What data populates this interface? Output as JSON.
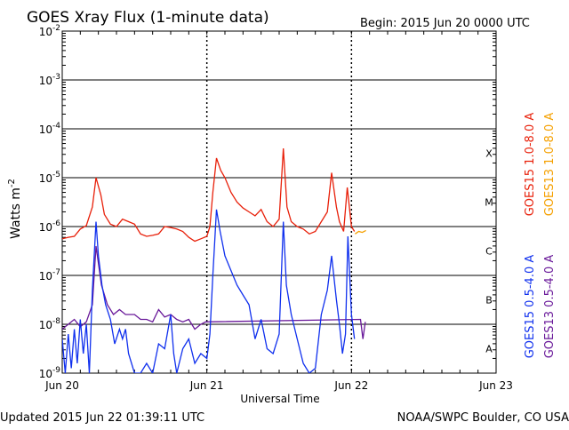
{
  "header": {
    "title": "GOES Xray Flux (1-minute data)",
    "begin": "Begin:  2015 Jun 20 0000 UTC"
  },
  "footer": {
    "updated": "Updated 2015 Jun 22 01:39:11 UTC",
    "credit": "NOAA/SWPC Boulder, CO USA"
  },
  "chart_data": {
    "type": "line",
    "title": "GOES Xray Flux (1-minute data)",
    "xlabel": "Universal Time",
    "ylabel": "Watts m",
    "ylabel_exponent": "-2",
    "y_scale": "log",
    "ylim": [
      1e-09,
      0.01
    ],
    "xlim": [
      "2015-06-20 00:00",
      "2015-06-23 00:00"
    ],
    "x_unit": "hours from 2015 Jun 20 0000 UTC",
    "x_ticks": [
      {
        "x": 0,
        "label": "Jun 20"
      },
      {
        "x": 24,
        "label": "Jun 21"
      },
      {
        "x": 48,
        "label": "Jun 22"
      },
      {
        "x": 72,
        "label": "Jun 23"
      }
    ],
    "y_ticks": [
      {
        "exp": -2,
        "base": "10",
        "sup": "-2"
      },
      {
        "exp": -3,
        "base": "10",
        "sup": "-3"
      },
      {
        "exp": -4,
        "base": "10",
        "sup": "-4"
      },
      {
        "exp": -5,
        "base": "10",
        "sup": "-5"
      },
      {
        "exp": -6,
        "base": "10",
        "sup": "-6"
      },
      {
        "exp": -7,
        "base": "10",
        "sup": "-7"
      },
      {
        "exp": -8,
        "base": "10",
        "sup": "-8"
      },
      {
        "exp": -9,
        "base": "10",
        "sup": "-9"
      }
    ],
    "flare_classes": [
      {
        "label": "X",
        "exp": -4
      },
      {
        "label": "M",
        "exp": -5
      },
      {
        "label": "C",
        "exp": -6
      },
      {
        "label": "B",
        "exp": -7
      },
      {
        "label": "A",
        "exp": -8
      }
    ],
    "grid": true,
    "legend_placement": "right, vertical",
    "series": [
      {
        "name": "GOES15 1.0-8.0 A",
        "color": "#e8200a",
        "points": [
          [
            0,
            -6.25
          ],
          [
            1,
            -6.22
          ],
          [
            2,
            -6.2
          ],
          [
            3,
            -6.05
          ],
          [
            4,
            -5.98
          ],
          [
            5,
            -5.6
          ],
          [
            5.6,
            -5.0
          ],
          [
            6.4,
            -5.35
          ],
          [
            7,
            -5.75
          ],
          [
            8,
            -5.95
          ],
          [
            9,
            -6.0
          ],
          [
            10,
            -5.85
          ],
          [
            11,
            -5.9
          ],
          [
            12,
            -5.95
          ],
          [
            13,
            -6.15
          ],
          [
            14,
            -6.2
          ],
          [
            15,
            -6.18
          ],
          [
            16,
            -6.15
          ],
          [
            17,
            -6.0
          ],
          [
            18,
            -6.02
          ],
          [
            19,
            -6.05
          ],
          [
            20,
            -6.1
          ],
          [
            21,
            -6.22
          ],
          [
            22,
            -6.3
          ],
          [
            23,
            -6.25
          ],
          [
            24,
            -6.2
          ],
          [
            24.5,
            -6.0
          ],
          [
            25,
            -5.3
          ],
          [
            25.6,
            -4.6
          ],
          [
            26.3,
            -4.85
          ],
          [
            27,
            -5.0
          ],
          [
            28,
            -5.3
          ],
          [
            29,
            -5.5
          ],
          [
            30,
            -5.62
          ],
          [
            31,
            -5.7
          ],
          [
            32,
            -5.78
          ],
          [
            33,
            -5.65
          ],
          [
            34,
            -5.9
          ],
          [
            35,
            -6.0
          ],
          [
            36,
            -5.85
          ],
          [
            36.7,
            -4.4
          ],
          [
            37.3,
            -5.6
          ],
          [
            38,
            -5.9
          ],
          [
            39,
            -6.0
          ],
          [
            40,
            -6.05
          ],
          [
            41,
            -6.15
          ],
          [
            42,
            -6.1
          ],
          [
            43,
            -5.9
          ],
          [
            44,
            -5.7
          ],
          [
            44.7,
            -4.9
          ],
          [
            45.5,
            -5.6
          ],
          [
            46,
            -5.9
          ],
          [
            46.7,
            -6.1
          ],
          [
            47.3,
            -5.2
          ],
          [
            48,
            -6.0
          ],
          [
            48.5,
            -6.1
          ]
        ]
      },
      {
        "name": "GOES13 1.0-8.0 A",
        "color": "#f5a000",
        "points": [
          [
            48.6,
            -6.15
          ],
          [
            49.2,
            -6.1
          ],
          [
            49.8,
            -6.12
          ],
          [
            50.4,
            -6.08
          ]
        ]
      },
      {
        "name": "GOES15 0.5-4.0 A",
        "color": "#1030ee",
        "points": [
          [
            0,
            -8.3
          ],
          [
            0.5,
            -9.0
          ],
          [
            1,
            -8.2
          ],
          [
            1.5,
            -8.9
          ],
          [
            2,
            -8.1
          ],
          [
            2.5,
            -8.8
          ],
          [
            3,
            -7.9
          ],
          [
            3.5,
            -8.6
          ],
          [
            4,
            -8.0
          ],
          [
            4.5,
            -9.0
          ],
          [
            5,
            -7.3
          ],
          [
            5.6,
            -5.9
          ],
          [
            6,
            -6.6
          ],
          [
            6.6,
            -7.2
          ],
          [
            7.2,
            -7.6
          ],
          [
            8,
            -7.9
          ],
          [
            8.7,
            -8.4
          ],
          [
            9.5,
            -8.1
          ],
          [
            10,
            -8.3
          ],
          [
            10.5,
            -8.1
          ],
          [
            11,
            -8.6
          ],
          [
            12,
            -9.0
          ],
          [
            13,
            -9.0
          ],
          [
            14,
            -8.8
          ],
          [
            15,
            -9.0
          ],
          [
            16,
            -8.4
          ],
          [
            17,
            -8.5
          ],
          [
            18,
            -7.8
          ],
          [
            18.5,
            -8.6
          ],
          [
            19,
            -9.0
          ],
          [
            20,
            -8.5
          ],
          [
            21,
            -8.3
          ],
          [
            22,
            -8.8
          ],
          [
            23,
            -8.6
          ],
          [
            24,
            -8.7
          ],
          [
            24.5,
            -8.2
          ],
          [
            25,
            -7.0
          ],
          [
            25.6,
            -5.65
          ],
          [
            26.2,
            -6.1
          ],
          [
            27,
            -6.6
          ],
          [
            28,
            -6.9
          ],
          [
            29,
            -7.2
          ],
          [
            30,
            -7.4
          ],
          [
            31,
            -7.6
          ],
          [
            32,
            -8.3
          ],
          [
            33,
            -7.9
          ],
          [
            34,
            -8.5
          ],
          [
            35,
            -8.6
          ],
          [
            36,
            -8.2
          ],
          [
            36.7,
            -5.9
          ],
          [
            37.2,
            -7.2
          ],
          [
            38,
            -7.8
          ],
          [
            39,
            -8.3
          ],
          [
            40,
            -8.8
          ],
          [
            41,
            -9.0
          ],
          [
            42,
            -8.9
          ],
          [
            43,
            -7.8
          ],
          [
            44,
            -7.3
          ],
          [
            44.7,
            -6.6
          ],
          [
            45.5,
            -7.5
          ],
          [
            46,
            -8.0
          ],
          [
            46.5,
            -8.6
          ],
          [
            47,
            -8.2
          ],
          [
            47.4,
            -6.2
          ],
          [
            48,
            -7.8
          ],
          [
            48.5,
            -8.3
          ]
        ]
      },
      {
        "name": "GOES13 0.5-4.0 A",
        "color": "#6a1a9a",
        "points": [
          [
            0,
            -8.1
          ],
          [
            1,
            -8.0
          ],
          [
            2,
            -7.9
          ],
          [
            3,
            -8.05
          ],
          [
            4,
            -7.95
          ],
          [
            5,
            -7.6
          ],
          [
            5.6,
            -6.4
          ],
          [
            6.5,
            -7.2
          ],
          [
            7.5,
            -7.6
          ],
          [
            8.5,
            -7.8
          ],
          [
            9.5,
            -7.7
          ],
          [
            10.5,
            -7.8
          ],
          [
            12,
            -7.8
          ],
          [
            13,
            -7.9
          ],
          [
            14,
            -7.9
          ],
          [
            15,
            -7.95
          ],
          [
            16,
            -7.7
          ],
          [
            17,
            -7.85
          ],
          [
            18,
            -7.8
          ],
          [
            19,
            -7.9
          ],
          [
            20,
            -7.95
          ],
          [
            21,
            -7.9
          ],
          [
            22,
            -8.1
          ],
          [
            23,
            -8.0
          ],
          [
            23.8,
            -7.95
          ],
          [
            49.5,
            -7.9
          ],
          [
            49.9,
            -8.3
          ],
          [
            50.3,
            -7.95
          ]
        ]
      }
    ]
  }
}
